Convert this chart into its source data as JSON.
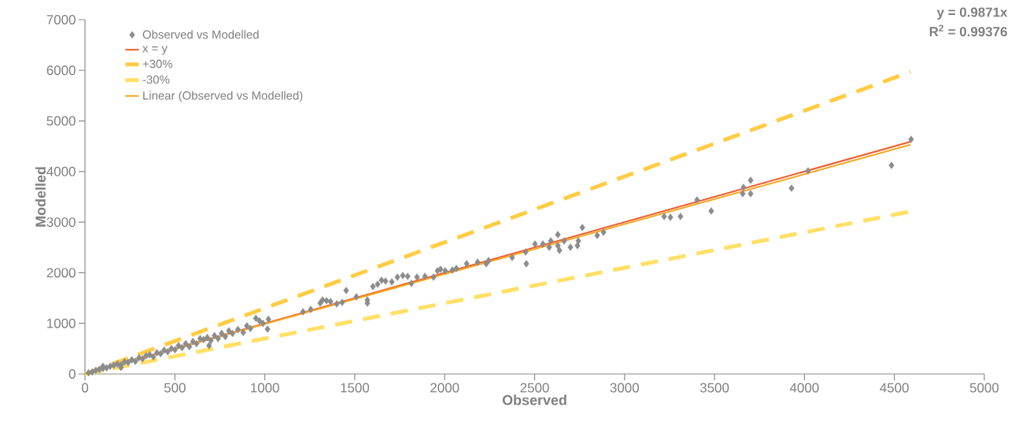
{
  "chart_data": {
    "type": "scatter",
    "xlabel": "Observed",
    "ylabel": "Modelled",
    "xlim": [
      0,
      5000
    ],
    "ylim": [
      0,
      7000
    ],
    "xticks": [
      0,
      500,
      1000,
      1500,
      2000,
      2500,
      3000,
      3500,
      4000,
      4500,
      5000
    ],
    "yticks": [
      0,
      1000,
      2000,
      3000,
      4000,
      5000,
      6000,
      7000
    ],
    "grid": false,
    "legend": "top left",
    "annotations": [
      "y = 0.9871x",
      "R$^{2}$ = 0.99376"
    ],
    "series": [
      {
        "name": "Observed vs Modelled",
        "marker": "diamond",
        "color": "#8c8c8c",
        "x": [
          20,
          40,
          60,
          80,
          100,
          100,
          120,
          140,
          160,
          180,
          200,
          200,
          220,
          240,
          260,
          280,
          300,
          320,
          340,
          360,
          380,
          400,
          420,
          440,
          460,
          480,
          500,
          520,
          540,
          560,
          580,
          600,
          620,
          640,
          660,
          680,
          690,
          700,
          720,
          740,
          760,
          780,
          800,
          820,
          850,
          880,
          900,
          920,
          950,
          970,
          990,
          1015,
          1020,
          1212,
          1255,
          1308,
          1321,
          1343,
          1365,
          1400,
          1430,
          1452,
          1509,
          1570,
          1570,
          1601,
          1627,
          1649,
          1671,
          1706,
          1737,
          1767,
          1794,
          1815,
          1846,
          1890,
          1938,
          1960,
          1977,
          2003,
          2043,
          2065,
          2122,
          2183,
          2231,
          2244,
          2375,
          2450,
          2454,
          2502,
          2546,
          2581,
          2590,
          2629,
          2629,
          2638,
          2664,
          2699,
          2738,
          2743,
          2765,
          2848,
          2883,
          3220,
          3255,
          3311,
          3403,
          3482,
          3657,
          3661,
          3701,
          3701,
          3928,
          4020,
          4484,
          4593
        ],
        "values": [
          25,
          40,
          70,
          90,
          110,
          150,
          120,
          150,
          170,
          200,
          180,
          130,
          240,
          230,
          280,
          250,
          320,
          300,
          360,
          380,
          340,
          420,
          400,
          470,
          440,
          500,
          480,
          560,
          520,
          600,
          540,
          640,
          600,
          700,
          680,
          720,
          560,
          660,
          760,
          700,
          800,
          740,
          850,
          800,
          880,
          820,
          950,
          900,
          1100,
          1050,
          1000,
          887,
          1080,
          1229,
          1275,
          1400,
          1462,
          1447,
          1431,
          1384,
          1415,
          1649,
          1524,
          1400,
          1462,
          1727,
          1773,
          1851,
          1835,
          1820,
          1913,
          1944,
          1929,
          1789,
          1913,
          1929,
          1913,
          2038,
          2069,
          2038,
          2053,
          2084,
          2178,
          2209,
          2178,
          2240,
          2302,
          2411,
          2178,
          2567,
          2567,
          2504,
          2629,
          2753,
          2535,
          2442,
          2629,
          2504,
          2535,
          2629,
          2893,
          2738,
          2800,
          3111,
          3095,
          3111,
          3437,
          3220,
          3562,
          3686,
          3826,
          3562,
          3670,
          4013,
          4122,
          4635
        ]
      },
      {
        "name": "x = y",
        "type": "line",
        "marker": "none",
        "line_style": "solid",
        "color": "#f05a28",
        "x": [
          0,
          4590
        ],
        "values": [
          0,
          4590
        ]
      },
      {
        "name": "+30%",
        "type": "line",
        "marker": "none",
        "line_style": "dashed",
        "color": "#ffcc44",
        "x": [
          0,
          4590
        ],
        "values": [
          0,
          5970
        ]
      },
      {
        "name": "-30%",
        "type": "line",
        "marker": "none",
        "line_style": "dashed",
        "color": "#ffe066",
        "x": [
          0,
          4590
        ],
        "values": [
          0,
          3210
        ]
      },
      {
        "name": "Linear (Observed vs Modelled)",
        "type": "line",
        "marker": "none",
        "line_style": "solid",
        "color": "#f5a623",
        "x": [
          0,
          4590
        ],
        "values": [
          0,
          4530
        ]
      }
    ]
  }
}
